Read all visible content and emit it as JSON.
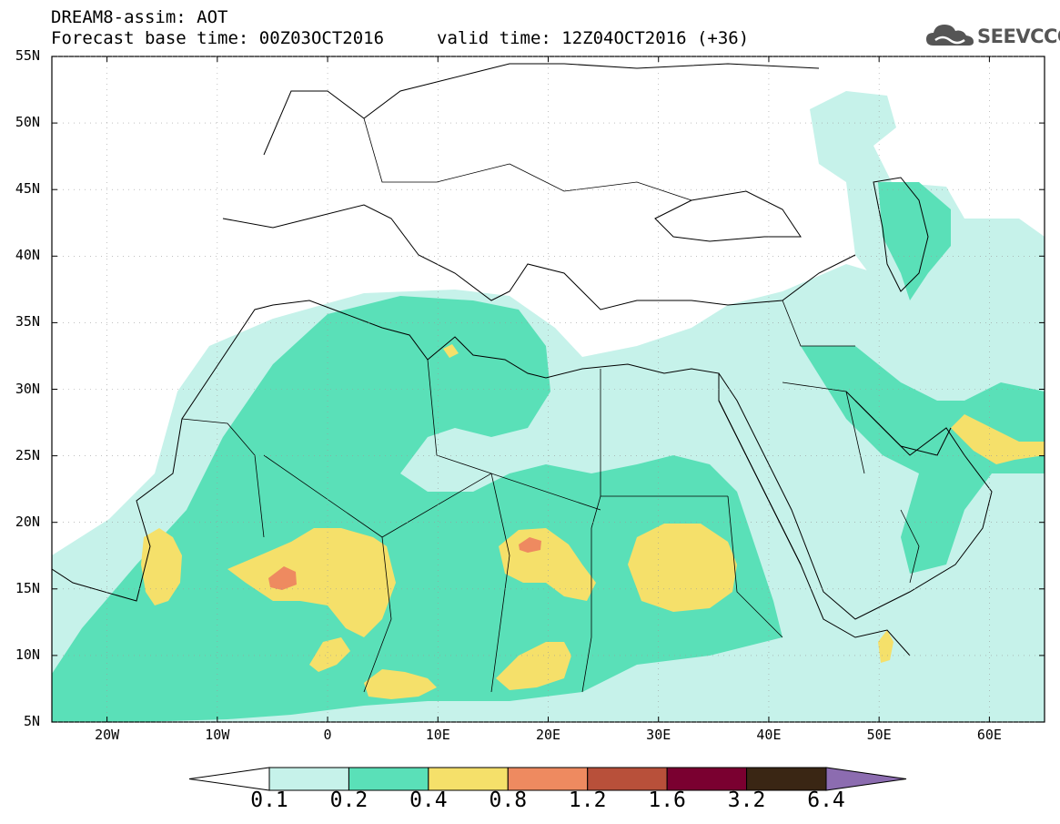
{
  "header": {
    "title_line1": "DREAM8-assim: AOT",
    "title_line2": "Forecast base time: 00Z03OCT2016",
    "valid_time": "valid time: 12Z04OCT2016 (+36)",
    "logo_text": "SEEVCCC"
  },
  "map": {
    "lat_labels": [
      "55N",
      "50N",
      "45N",
      "40N",
      "35N",
      "30N",
      "25N",
      "20N",
      "15N",
      "10N",
      "5N"
    ],
    "lon_labels": [
      "20W",
      "10W",
      "0",
      "10E",
      "20E",
      "30E",
      "40E",
      "50E",
      "60E"
    ],
    "lon_range": [
      -25,
      65
    ],
    "lat_range": [
      5,
      55
    ]
  },
  "colorbar": {
    "labels": [
      "0.1",
      "0.2",
      "0.4",
      "0.8",
      "1.2",
      "1.6",
      "3.2",
      "6.4"
    ],
    "colors": [
      "#ffffff",
      "#c6f2ea",
      "#5ae0b8",
      "#f5e06a",
      "#ee8a60",
      "#b8503a",
      "#7a0030",
      "#3a2614",
      "#8c6cb0"
    ]
  }
}
